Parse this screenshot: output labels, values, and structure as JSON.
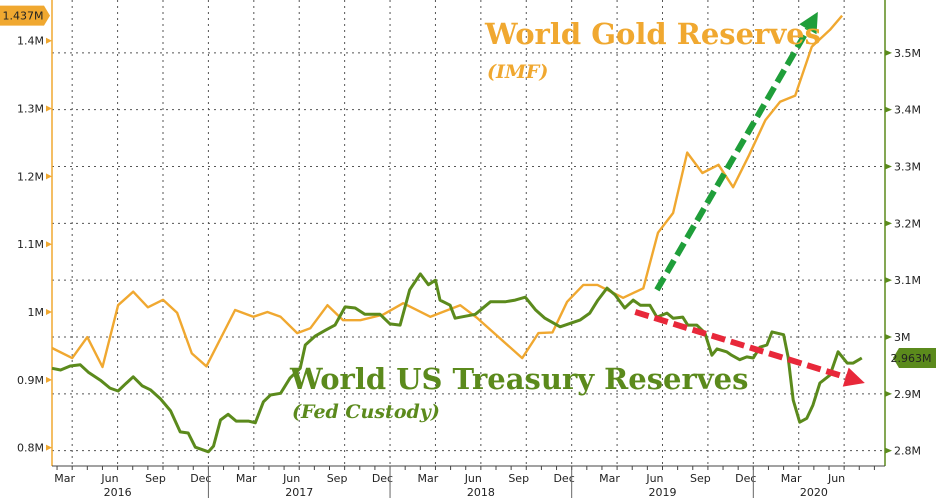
{
  "chart_data": {
    "type": "line",
    "title": "",
    "xlabel": "",
    "xlim": [
      "2016-02-21",
      "2020-09-22"
    ],
    "x_ticks": {
      "months": [
        {
          "label": "Mar",
          "date": "2016-03-16"
        },
        {
          "label": "Jun",
          "date": "2016-06-16"
        },
        {
          "label": "Sep",
          "date": "2016-09-16"
        },
        {
          "label": "Dec",
          "date": "2016-12-16"
        },
        {
          "label": "Mar",
          "date": "2017-03-16"
        },
        {
          "label": "Jun",
          "date": "2017-06-16"
        },
        {
          "label": "Sep",
          "date": "2017-09-16"
        },
        {
          "label": "Dec",
          "date": "2017-12-16"
        },
        {
          "label": "Mar",
          "date": "2018-03-16"
        },
        {
          "label": "Jun",
          "date": "2018-06-16"
        },
        {
          "label": "Sep",
          "date": "2018-09-16"
        },
        {
          "label": "Dec",
          "date": "2018-12-16"
        },
        {
          "label": "Mar",
          "date": "2019-03-16"
        },
        {
          "label": "Jun",
          "date": "2019-06-16"
        },
        {
          "label": "Sep",
          "date": "2019-09-16"
        },
        {
          "label": "Dec",
          "date": "2019-12-16"
        },
        {
          "label": "Mar",
          "date": "2020-03-16"
        },
        {
          "label": "Jun",
          "date": "2020-06-16"
        }
      ],
      "years": [
        {
          "label": "2016",
          "date": "2016-07-01"
        },
        {
          "label": "2017",
          "date": "2017-07-01"
        },
        {
          "label": "2018",
          "date": "2018-07-01"
        },
        {
          "label": "2019",
          "date": "2019-07-01"
        },
        {
          "label": "2020",
          "date": "2020-05-01"
        }
      ],
      "year_boundaries": [
        "2017-01-01",
        "2018-01-01",
        "2019-01-01",
        "2020-01-01"
      ]
    },
    "grid": true,
    "y_left": {
      "ylim": [
        0.773,
        1.46
      ],
      "ticks": [
        {
          "v": 0.8,
          "label": "0.8M"
        },
        {
          "v": 0.9,
          "label": "0.9M"
        },
        {
          "v": 1.0,
          "label": "1M"
        },
        {
          "v": 1.1,
          "label": "1.1M"
        },
        {
          "v": 1.2,
          "label": "1.2M"
        },
        {
          "v": 1.3,
          "label": "1.3M"
        },
        {
          "v": 1.4,
          "label": "1.4M"
        }
      ],
      "color": "#f0a830"
    },
    "y_right": {
      "ylim": [
        2.773,
        3.593
      ],
      "ticks": [
        {
          "v": 2.8,
          "label": "2.8M"
        },
        {
          "v": 2.9,
          "label": "2.9M"
        },
        {
          "v": 3.0,
          "label": "3M"
        },
        {
          "v": 3.1,
          "label": "3.1M"
        },
        {
          "v": 3.2,
          "label": "3.2M"
        },
        {
          "v": 3.3,
          "label": "3.3M"
        },
        {
          "v": 3.4,
          "label": "3.4M"
        },
        {
          "v": 3.5,
          "label": "3.5M"
        }
      ],
      "color": "#5b8a1c"
    },
    "series": [
      {
        "name": "World Gold Reserves",
        "subtitle": "(IMF)",
        "axis": "left",
        "color": "#f0a830",
        "last_value_label": "1.437M",
        "points": [
          [
            "2016-02-21",
            0.947
          ],
          [
            "2016-04-01",
            0.932
          ],
          [
            "2016-05-01",
            0.963
          ],
          [
            "2016-06-01",
            0.919
          ],
          [
            "2016-07-02",
            1.01
          ],
          [
            "2016-08-02",
            1.03
          ],
          [
            "2016-09-01",
            1.007
          ],
          [
            "2016-10-01",
            1.018
          ],
          [
            "2016-10-29",
            0.999
          ],
          [
            "2016-11-28",
            0.939
          ],
          [
            "2016-12-27",
            0.92
          ],
          [
            "2017-02-24",
            1.003
          ],
          [
            "2017-03-30",
            0.993
          ],
          [
            "2017-04-28",
            1.0
          ],
          [
            "2017-05-24",
            0.993
          ],
          [
            "2017-06-27",
            0.969
          ],
          [
            "2017-07-23",
            0.976
          ],
          [
            "2017-08-27",
            1.01
          ],
          [
            "2017-09-28",
            0.988
          ],
          [
            "2017-11-02",
            0.988
          ],
          [
            "2017-12-17",
            0.996
          ],
          [
            "2018-01-27",
            1.013
          ],
          [
            "2018-03-21",
            0.993
          ],
          [
            "2018-05-20",
            1.01
          ],
          [
            "2018-06-24",
            0.991
          ],
          [
            "2018-09-23",
            0.932
          ],
          [
            "2018-10-25",
            0.969
          ],
          [
            "2018-11-23",
            0.97
          ],
          [
            "2018-12-22",
            1.015
          ],
          [
            "2019-01-24",
            1.04
          ],
          [
            "2019-02-22",
            1.04
          ],
          [
            "2019-04-13",
            1.021
          ],
          [
            "2019-05-23",
            1.035
          ],
          [
            "2019-06-22",
            1.117
          ],
          [
            "2019-07-22",
            1.146
          ],
          [
            "2019-08-20",
            1.235
          ],
          [
            "2019-09-20",
            1.205
          ],
          [
            "2019-10-22",
            1.217
          ],
          [
            "2019-11-21",
            1.184
          ],
          [
            "2019-12-21",
            1.229
          ],
          [
            "2020-01-25",
            1.283
          ],
          [
            "2020-02-24",
            1.31
          ],
          [
            "2020-03-24",
            1.319
          ],
          [
            "2020-04-27",
            1.391
          ],
          [
            "2020-06-03",
            1.416
          ],
          [
            "2020-06-27",
            1.437
          ]
        ]
      },
      {
        "name": "World US Treasury Reserves",
        "subtitle": "(Fed Custody)",
        "axis": "right",
        "color": "#5b8a1c",
        "last_value_label": "2.963M",
        "points": [
          [
            "2016-02-21",
            2.945
          ],
          [
            "2016-03-08",
            2.942
          ],
          [
            "2016-03-27",
            2.949
          ],
          [
            "2016-04-17",
            2.951
          ],
          [
            "2016-05-03",
            2.938
          ],
          [
            "2016-05-27",
            2.924
          ],
          [
            "2016-06-16",
            2.91
          ],
          [
            "2016-07-02",
            2.905
          ],
          [
            "2016-07-16",
            2.917
          ],
          [
            "2016-08-02",
            2.93
          ],
          [
            "2016-08-20",
            2.914
          ],
          [
            "2016-09-06",
            2.907
          ],
          [
            "2016-09-26",
            2.891
          ],
          [
            "2016-10-16",
            2.87
          ],
          [
            "2016-11-05",
            2.833
          ],
          [
            "2016-11-21",
            2.831
          ],
          [
            "2016-12-05",
            2.806
          ],
          [
            "2017-01-01",
            2.798
          ],
          [
            "2017-01-11",
            2.808
          ],
          [
            "2017-01-25",
            2.854
          ],
          [
            "2017-02-10",
            2.864
          ],
          [
            "2017-02-26",
            2.852
          ],
          [
            "2017-03-20",
            2.852
          ],
          [
            "2017-04-04",
            2.849
          ],
          [
            "2017-04-20",
            2.886
          ],
          [
            "2017-05-04",
            2.898
          ],
          [
            "2017-05-24",
            2.901
          ],
          [
            "2017-06-13",
            2.928
          ],
          [
            "2017-07-03",
            2.945
          ],
          [
            "2017-07-13",
            2.986
          ],
          [
            "2017-08-03",
            3.002
          ],
          [
            "2017-08-23",
            3.012
          ],
          [
            "2017-09-12",
            3.021
          ],
          [
            "2017-10-02",
            3.053
          ],
          [
            "2017-10-22",
            3.051
          ],
          [
            "2017-11-11",
            3.04
          ],
          [
            "2017-12-11",
            3.04
          ],
          [
            "2018-01-01",
            3.023
          ],
          [
            "2018-01-21",
            3.021
          ],
          [
            "2018-02-10",
            3.083
          ],
          [
            "2018-03-01",
            3.111
          ],
          [
            "2018-03-17",
            3.092
          ],
          [
            "2018-03-31",
            3.1
          ],
          [
            "2018-04-10",
            3.065
          ],
          [
            "2018-04-30",
            3.056
          ],
          [
            "2018-05-10",
            3.033
          ],
          [
            "2018-06-20",
            3.04
          ],
          [
            "2018-07-20",
            3.062
          ],
          [
            "2018-08-19",
            3.062
          ],
          [
            "2018-09-09",
            3.065
          ],
          [
            "2018-09-29",
            3.07
          ],
          [
            "2018-10-19",
            3.048
          ],
          [
            "2018-11-08",
            3.033
          ],
          [
            "2018-12-08",
            3.018
          ],
          [
            "2019-01-18",
            3.03
          ],
          [
            "2019-02-07",
            3.042
          ],
          [
            "2019-02-23",
            3.065
          ],
          [
            "2019-03-11",
            3.086
          ],
          [
            "2019-03-27",
            3.074
          ],
          [
            "2019-04-16",
            3.051
          ],
          [
            "2019-05-03",
            3.065
          ],
          [
            "2019-05-17",
            3.056
          ],
          [
            "2019-06-06",
            3.056
          ],
          [
            "2019-06-20",
            3.035
          ],
          [
            "2019-07-10",
            3.042
          ],
          [
            "2019-07-22",
            3.033
          ],
          [
            "2019-08-11",
            3.035
          ],
          [
            "2019-08-21",
            3.021
          ],
          [
            "2019-09-09",
            3.021
          ],
          [
            "2019-09-25",
            3.007
          ],
          [
            "2019-10-09",
            2.968
          ],
          [
            "2019-10-19",
            2.979
          ],
          [
            "2019-11-08",
            2.974
          ],
          [
            "2019-11-18",
            2.968
          ],
          [
            "2019-12-04",
            2.96
          ],
          [
            "2019-12-18",
            2.965
          ],
          [
            "2020-01-01",
            2.963
          ],
          [
            "2020-01-14",
            2.982
          ],
          [
            "2020-01-28",
            2.986
          ],
          [
            "2020-02-08",
            3.009
          ],
          [
            "2020-03-01",
            3.004
          ],
          [
            "2020-03-10",
            2.965
          ],
          [
            "2020-03-20",
            2.889
          ],
          [
            "2020-04-03",
            2.85
          ],
          [
            "2020-04-17",
            2.857
          ],
          [
            "2020-04-29",
            2.88
          ],
          [
            "2020-05-13",
            2.919
          ],
          [
            "2020-06-03",
            2.933
          ],
          [
            "2020-06-19",
            2.974
          ],
          [
            "2020-07-07",
            2.954
          ],
          [
            "2020-07-19",
            2.954
          ],
          [
            "2020-08-06",
            2.963
          ]
        ]
      }
    ],
    "annotations": {
      "arrows": [
        {
          "name": "up-trend-arrow",
          "color": "#1f9e3a",
          "axis": "right",
          "from": [
            "2019-06-20",
            3.083
          ],
          "to": [
            "2020-05-09",
            3.572
          ]
        },
        {
          "name": "down-trend-arrow",
          "color": "#e8283a",
          "axis": "right",
          "from": [
            "2019-05-07",
            3.044
          ],
          "to": [
            "2020-08-12",
            2.919
          ]
        }
      ]
    }
  }
}
